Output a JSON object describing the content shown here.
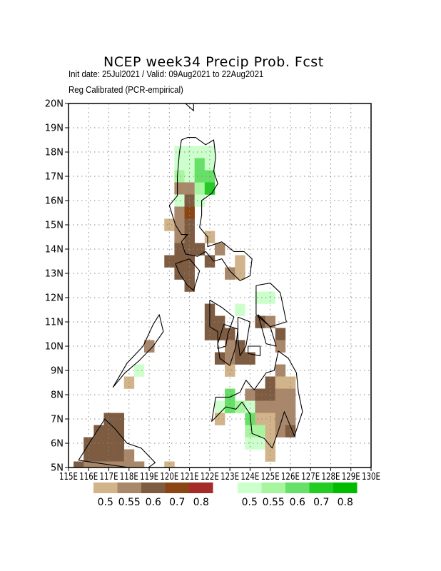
{
  "title": "NCEP week34 Precip Prob. Fcst",
  "subtitle_dates": "Init date: 25Jul2021 / Valid: 09Aug2021 to 22Aug2021",
  "subtitle_method": "Reg Calibrated (PCR-empirical)",
  "map": {
    "lon_range": [
      115,
      130
    ],
    "lat_range": [
      5,
      20
    ],
    "cell_deg": 0.5,
    "lat_ticks": [
      "5N",
      "6N",
      "7N",
      "8N",
      "9N",
      "10N",
      "11N",
      "12N",
      "13N",
      "14N",
      "15N",
      "16N",
      "17N",
      "18N",
      "19N",
      "20N"
    ],
    "lon_ticks": [
      "115E",
      "116E",
      "117E",
      "118E",
      "119E",
      "120E",
      "121E",
      "122E",
      "123E",
      "124E",
      "125E",
      "126E",
      "127E",
      "128E",
      "129E",
      "130E"
    ],
    "gridlines": true,
    "gridline_style": "dotted"
  },
  "legend": {
    "dry": {
      "colors": [
        "#d2b48a",
        "#a8876a",
        "#7e5c42",
        "#8b4513",
        "#a52a2a"
      ],
      "labels": [
        "0.5",
        "0.55",
        "0.6",
        "0.7",
        "0.8"
      ]
    },
    "wet": {
      "colors": [
        "#ccffcc",
        "#a8f5a0",
        "#66e066",
        "#22cc22",
        "#00bb00"
      ],
      "labels": [
        "0.5",
        "0.55",
        "0.6",
        "0.7",
        "0.8"
      ]
    }
  },
  "prob_cells": [
    {
      "lat": 18.0,
      "lon": 120.5,
      "cat": "wet0"
    },
    {
      "lat": 18.0,
      "lon": 121.0,
      "cat": "wet0"
    },
    {
      "lat": 18.0,
      "lon": 121.5,
      "cat": "wet0"
    },
    {
      "lat": 18.0,
      "lon": 122.0,
      "cat": "wet0"
    },
    {
      "lat": 17.5,
      "lon": 120.5,
      "cat": "wet0"
    },
    {
      "lat": 17.5,
      "lon": 121.0,
      "cat": "wet0"
    },
    {
      "lat": 17.5,
      "lon": 121.5,
      "cat": "wet2"
    },
    {
      "lat": 17.5,
      "lon": 122.0,
      "cat": "wet0"
    },
    {
      "lat": 17.0,
      "lon": 120.5,
      "cat": "wet1"
    },
    {
      "lat": 17.0,
      "lon": 121.0,
      "cat": "wet0"
    },
    {
      "lat": 17.0,
      "lon": 121.5,
      "cat": "wet2"
    },
    {
      "lat": 17.0,
      "lon": 122.0,
      "cat": "wet2"
    },
    {
      "lat": 16.5,
      "lon": 120.5,
      "cat": "dry1"
    },
    {
      "lat": 16.5,
      "lon": 121.0,
      "cat": "dry1"
    },
    {
      "lat": 16.5,
      "lon": 121.5,
      "cat": "wet1"
    },
    {
      "lat": 16.5,
      "lon": 122.0,
      "cat": "wet3"
    },
    {
      "lat": 16.0,
      "lon": 120.5,
      "cat": "wet0"
    },
    {
      "lat": 16.0,
      "lon": 121.0,
      "cat": "dry2"
    },
    {
      "lat": 16.0,
      "lon": 121.5,
      "cat": "wet0"
    },
    {
      "lat": 15.5,
      "lon": 120.5,
      "cat": "dry1"
    },
    {
      "lat": 15.5,
      "lon": 121.0,
      "cat": "dry3"
    },
    {
      "lat": 15.0,
      "lon": 120.0,
      "cat": "dry0"
    },
    {
      "lat": 15.0,
      "lon": 120.5,
      "cat": "dry1"
    },
    {
      "lat": 15.0,
      "lon": 121.0,
      "cat": "dry2"
    },
    {
      "lat": 14.5,
      "lon": 120.5,
      "cat": "dry1"
    },
    {
      "lat": 14.5,
      "lon": 121.0,
      "cat": "dry2"
    },
    {
      "lat": 14.5,
      "lon": 122.0,
      "cat": "dry0"
    },
    {
      "lat": 14.0,
      "lon": 120.5,
      "cat": "dry2"
    },
    {
      "lat": 14.0,
      "lon": 121.0,
      "cat": "dry2"
    },
    {
      "lat": 14.0,
      "lon": 121.5,
      "cat": "dry2"
    },
    {
      "lat": 14.0,
      "lon": 122.5,
      "cat": "dry1"
    },
    {
      "lat": 13.5,
      "lon": 120.0,
      "cat": "dry2"
    },
    {
      "lat": 13.5,
      "lon": 120.5,
      "cat": "dry2"
    },
    {
      "lat": 13.5,
      "lon": 121.0,
      "cat": "dry2"
    },
    {
      "lat": 13.5,
      "lon": 122.0,
      "cat": "dry2"
    },
    {
      "lat": 13.5,
      "lon": 123.5,
      "cat": "dry0"
    },
    {
      "lat": 13.0,
      "lon": 120.5,
      "cat": "dry2"
    },
    {
      "lat": 13.0,
      "lon": 121.0,
      "cat": "dry2"
    },
    {
      "lat": 13.0,
      "lon": 123.0,
      "cat": "dry1"
    },
    {
      "lat": 13.0,
      "lon": 123.5,
      "cat": "dry0"
    },
    {
      "lat": 12.5,
      "lon": 121.0,
      "cat": "dry2"
    },
    {
      "lat": 12.0,
      "lon": 124.5,
      "cat": "wet0"
    },
    {
      "lat": 12.0,
      "lon": 125.0,
      "cat": "wet0"
    },
    {
      "lat": 11.5,
      "lon": 123.5,
      "cat": "wet0"
    },
    {
      "lat": 11.5,
      "lon": 122.0,
      "cat": "dry2"
    },
    {
      "lat": 11.0,
      "lon": 122.0,
      "cat": "dry2"
    },
    {
      "lat": 11.0,
      "lon": 122.5,
      "cat": "dry2"
    },
    {
      "lat": 11.0,
      "lon": 124.5,
      "cat": "dry2"
    },
    {
      "lat": 11.0,
      "lon": 125.0,
      "cat": "dry1"
    },
    {
      "lat": 10.5,
      "lon": 122.0,
      "cat": "dry2"
    },
    {
      "lat": 10.5,
      "lon": 122.5,
      "cat": "dry2"
    },
    {
      "lat": 10.5,
      "lon": 123.0,
      "cat": "dry2"
    },
    {
      "lat": 10.5,
      "lon": 125.5,
      "cat": "dry2"
    },
    {
      "lat": 10.0,
      "lon": 123.0,
      "cat": "dry1"
    },
    {
      "lat": 10.0,
      "lon": 123.5,
      "cat": "dry2"
    },
    {
      "lat": 10.0,
      "lon": 125.5,
      "cat": "dry1"
    },
    {
      "lat": 9.5,
      "lon": 122.5,
      "cat": "dry2"
    },
    {
      "lat": 9.5,
      "lon": 123.0,
      "cat": "dry1"
    },
    {
      "lat": 9.5,
      "lon": 123.5,
      "cat": "dry2"
    },
    {
      "lat": 9.5,
      "lon": 124.0,
      "cat": "dry2"
    },
    {
      "lat": 9.0,
      "lon": 123.0,
      "cat": "dry0"
    },
    {
      "lat": 9.0,
      "lon": 125.5,
      "cat": "dry1"
    },
    {
      "lat": 8.5,
      "lon": 125.0,
      "cat": "dry2"
    },
    {
      "lat": 8.5,
      "lon": 125.5,
      "cat": "dry0"
    },
    {
      "lat": 8.5,
      "lon": 126.0,
      "cat": "dry0"
    },
    {
      "lat": 8.0,
      "lon": 123.0,
      "cat": "wet2"
    },
    {
      "lat": 8.0,
      "lon": 124.0,
      "cat": "dry1"
    },
    {
      "lat": 8.0,
      "lon": 124.5,
      "cat": "dry2"
    },
    {
      "lat": 8.0,
      "lon": 125.0,
      "cat": "dry2"
    },
    {
      "lat": 8.0,
      "lon": 125.5,
      "cat": "dry1"
    },
    {
      "lat": 8.0,
      "lon": 126.0,
      "cat": "dry1"
    },
    {
      "lat": 7.5,
      "lon": 122.5,
      "cat": "wet0"
    },
    {
      "lat": 7.5,
      "lon": 123.0,
      "cat": "wet2"
    },
    {
      "lat": 7.5,
      "lon": 123.5,
      "cat": "wet1"
    },
    {
      "lat": 7.5,
      "lon": 124.0,
      "cat": "wet0"
    },
    {
      "lat": 7.5,
      "lon": 124.5,
      "cat": "dry1"
    },
    {
      "lat": 7.5,
      "lon": 125.0,
      "cat": "dry1"
    },
    {
      "lat": 7.5,
      "lon": 125.5,
      "cat": "dry1"
    },
    {
      "lat": 7.5,
      "lon": 126.0,
      "cat": "dry1"
    },
    {
      "lat": 7.0,
      "lon": 122.5,
      "cat": "dry0"
    },
    {
      "lat": 7.0,
      "lon": 124.0,
      "cat": "wet2"
    },
    {
      "lat": 7.0,
      "lon": 124.5,
      "cat": "dry0"
    },
    {
      "lat": 7.0,
      "lon": 125.0,
      "cat": "dry0"
    },
    {
      "lat": 7.0,
      "lon": 125.5,
      "cat": "dry1"
    },
    {
      "lat": 7.0,
      "lon": 126.0,
      "cat": "dry1"
    },
    {
      "lat": 6.5,
      "lon": 124.0,
      "cat": "wet1"
    },
    {
      "lat": 6.5,
      "lon": 124.5,
      "cat": "wet1"
    },
    {
      "lat": 6.5,
      "lon": 125.0,
      "cat": "dry0"
    },
    {
      "lat": 6.5,
      "lon": 125.5,
      "cat": "dry1"
    },
    {
      "lat": 6.5,
      "lon": 126.0,
      "cat": "dry2"
    },
    {
      "lat": 6.0,
      "lon": 124.0,
      "cat": "wet0"
    },
    {
      "lat": 6.0,
      "lon": 124.5,
      "cat": "wet0"
    },
    {
      "lat": 6.0,
      "lon": 125.0,
      "cat": "dry0"
    },
    {
      "lat": 5.5,
      "lon": 125.0,
      "cat": "dry0"
    },
    {
      "lat": 9.0,
      "lon": 118.5,
      "cat": "wet0"
    },
    {
      "lat": 8.5,
      "lon": 118.0,
      "cat": "dry0"
    },
    {
      "lat": 10.0,
      "lon": 119.0,
      "cat": "dry1"
    },
    {
      "lat": 7.0,
      "lon": 117.0,
      "cat": "dry2"
    },
    {
      "lat": 7.0,
      "lon": 117.5,
      "cat": "dry2"
    },
    {
      "lat": 6.5,
      "lon": 116.5,
      "cat": "dry2"
    },
    {
      "lat": 6.5,
      "lon": 117.0,
      "cat": "dry2"
    },
    {
      "lat": 6.5,
      "lon": 117.5,
      "cat": "dry2"
    },
    {
      "lat": 6.0,
      "lon": 116.0,
      "cat": "dry2"
    },
    {
      "lat": 6.0,
      "lon": 116.5,
      "cat": "dry2"
    },
    {
      "lat": 6.0,
      "lon": 117.0,
      "cat": "dry2"
    },
    {
      "lat": 6.0,
      "lon": 117.5,
      "cat": "dry2"
    },
    {
      "lat": 5.5,
      "lon": 116.0,
      "cat": "dry2"
    },
    {
      "lat": 5.5,
      "lon": 116.5,
      "cat": "dry2"
    },
    {
      "lat": 5.5,
      "lon": 117.0,
      "cat": "dry2"
    },
    {
      "lat": 5.5,
      "lon": 117.5,
      "cat": "dry2"
    },
    {
      "lat": 5.5,
      "lon": 118.0,
      "cat": "dry1"
    },
    {
      "lat": 5.0,
      "lon": 115.5,
      "cat": "dry2"
    },
    {
      "lat": 5.0,
      "lon": 116.0,
      "cat": "dry1"
    },
    {
      "lat": 5.0,
      "lon": 116.5,
      "cat": "dry1"
    },
    {
      "lat": 5.0,
      "lon": 117.0,
      "cat": "dry1"
    },
    {
      "lat": 5.0,
      "lon": 117.5,
      "cat": "dry1"
    },
    {
      "lat": 5.0,
      "lon": 118.0,
      "cat": "dry1"
    },
    {
      "lat": 5.0,
      "lon": 118.5,
      "cat": "dry1"
    },
    {
      "lat": 5.0,
      "lon": 120.0,
      "cat": "dry0"
    }
  ],
  "coastlines": [
    [
      [
        120.6,
        18.5
      ],
      [
        120.9,
        18.6
      ],
      [
        121.3,
        18.6
      ],
      [
        121.8,
        18.3
      ],
      [
        122.2,
        18.5
      ],
      [
        122.3,
        17.8
      ],
      [
        122.2,
        17.2
      ],
      [
        122.4,
        16.7
      ],
      [
        122.1,
        16.3
      ],
      [
        121.6,
        16.0
      ],
      [
        121.6,
        15.4
      ],
      [
        121.5,
        14.9
      ],
      [
        121.9,
        14.5
      ],
      [
        121.9,
        14.1
      ],
      [
        122.6,
        14.3
      ],
      [
        123.2,
        13.9
      ],
      [
        123.7,
        13.9
      ],
      [
        124.1,
        13.6
      ],
      [
        124.0,
        12.9
      ],
      [
        123.5,
        12.7
      ],
      [
        123.0,
        13.1
      ],
      [
        122.6,
        13.6
      ],
      [
        122.2,
        13.5
      ],
      [
        121.8,
        13.9
      ],
      [
        121.4,
        13.7
      ],
      [
        120.8,
        13.8
      ],
      [
        120.6,
        14.3
      ],
      [
        120.9,
        14.6
      ],
      [
        120.6,
        14.6
      ],
      [
        120.3,
        15.0
      ],
      [
        120.0,
        15.8
      ],
      [
        120.4,
        16.2
      ],
      [
        120.4,
        17.0
      ],
      [
        120.5,
        18.0
      ],
      [
        120.6,
        18.5
      ]
    ],
    [
      [
        120.3,
        13.4
      ],
      [
        121.0,
        13.6
      ],
      [
        121.5,
        13.1
      ],
      [
        121.2,
        12.3
      ],
      [
        120.9,
        12.5
      ],
      [
        120.5,
        13.0
      ],
      [
        120.3,
        13.4
      ]
    ],
    [
      [
        122.0,
        11.9
      ],
      [
        122.6,
        11.6
      ],
      [
        123.2,
        11.2
      ],
      [
        122.9,
        10.5
      ],
      [
        122.8,
        10.0
      ],
      [
        122.4,
        9.9
      ],
      [
        122.4,
        10.6
      ],
      [
        122.0,
        10.8
      ],
      [
        122.0,
        11.9
      ]
    ],
    [
      [
        122.7,
        10.9
      ],
      [
        123.4,
        10.7
      ],
      [
        123.3,
        10.0
      ],
      [
        123.0,
        9.2
      ],
      [
        122.5,
        9.5
      ],
      [
        122.4,
        10.1
      ],
      [
        122.7,
        10.9
      ]
    ],
    [
      [
        123.4,
        11.2
      ],
      [
        124.0,
        11.0
      ],
      [
        123.8,
        10.0
      ],
      [
        123.5,
        9.6
      ],
      [
        123.4,
        10.3
      ],
      [
        123.4,
        11.2
      ]
    ],
    [
      [
        124.3,
        12.5
      ],
      [
        125.0,
        12.6
      ],
      [
        125.5,
        12.2
      ],
      [
        125.8,
        11.0
      ],
      [
        125.0,
        10.8
      ],
      [
        124.3,
        11.3
      ],
      [
        124.3,
        12.5
      ]
    ],
    [
      [
        124.4,
        11.3
      ],
      [
        125.0,
        10.8
      ],
      [
        125.3,
        10.0
      ],
      [
        124.8,
        10.1
      ],
      [
        124.4,
        11.3
      ]
    ],
    [
      [
        123.9,
        10.0
      ],
      [
        124.5,
        10.0
      ],
      [
        124.5,
        9.6
      ],
      [
        123.9,
        9.7
      ],
      [
        123.9,
        10.0
      ]
    ],
    [
      [
        125.4,
        9.8
      ],
      [
        125.9,
        9.5
      ],
      [
        126.3,
        8.9
      ],
      [
        126.4,
        8.1
      ],
      [
        126.6,
        7.3
      ],
      [
        126.2,
        6.3
      ],
      [
        125.7,
        7.3
      ],
      [
        125.4,
        6.5
      ],
      [
        125.1,
        5.8
      ],
      [
        124.7,
        6.2
      ],
      [
        124.1,
        6.4
      ],
      [
        124.0,
        7.2
      ],
      [
        123.6,
        7.7
      ],
      [
        123.3,
        7.4
      ],
      [
        122.8,
        7.5
      ],
      [
        122.1,
        6.9
      ],
      [
        122.3,
        7.9
      ],
      [
        123.0,
        7.9
      ],
      [
        123.5,
        8.1
      ],
      [
        123.8,
        8.6
      ],
      [
        124.2,
        8.2
      ],
      [
        124.8,
        8.9
      ],
      [
        125.2,
        9.0
      ],
      [
        125.4,
        9.8
      ]
    ],
    [
      [
        117.2,
        8.3
      ],
      [
        117.8,
        8.9
      ],
      [
        118.5,
        9.4
      ],
      [
        119.2,
        10.0
      ],
      [
        119.7,
        10.6
      ],
      [
        119.5,
        11.3
      ],
      [
        119.2,
        10.9
      ],
      [
        118.7,
        10.0
      ],
      [
        117.9,
        9.3
      ],
      [
        117.2,
        8.3
      ]
    ],
    [
      [
        115.5,
        5.3
      ],
      [
        116.1,
        6.1
      ],
      [
        116.8,
        7.0
      ],
      [
        117.3,
        6.6
      ],
      [
        117.9,
        6.0
      ],
      [
        118.6,
        5.8
      ],
      [
        119.3,
        5.2
      ],
      [
        118.8,
        4.9
      ],
      [
        115.5,
        5.3
      ]
    ],
    [
      [
        120.8,
        20.0
      ],
      [
        121.2,
        19.7
      ],
      [
        121.2,
        20.0
      ],
      [
        120.8,
        20.0
      ]
    ]
  ]
}
